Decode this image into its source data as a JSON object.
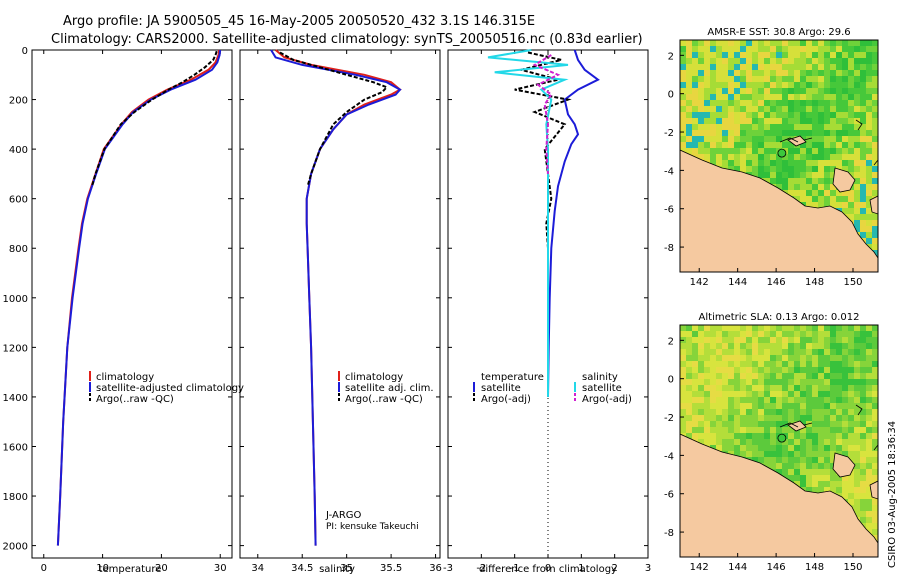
{
  "header": {
    "line1": "Argo profile: JA 5900505_45 16-May-2005 20050520_432 3.1S 146.315E",
    "line2": "Climatology: CARS2000. Satellite-adjusted climatology: synTS_20050516.nc (0.83d earlier)"
  },
  "side_text": "CSIRO 03-Aug-2005 18:36:34",
  "colors": {
    "climatology": "#e0201a",
    "satellite": "#1c1cd8",
    "argo": "#000000",
    "cyan": "#22d8e8",
    "magenta": "#d020d0",
    "land": "#f5c9a0",
    "sea_green": "#3cc83c"
  },
  "chart_data": [
    {
      "id": "temperature",
      "type": "line",
      "xlabel": "temperature",
      "ylabel": "",
      "xlim": [
        -2,
        32
      ],
      "ylim": [
        2050,
        0
      ],
      "xticks": [
        0,
        10,
        20,
        30
      ],
      "yticks": [
        0,
        200,
        400,
        600,
        800,
        1000,
        1200,
        1400,
        1600,
        1800,
        2000
      ],
      "legend": [
        "climatology",
        "satellite-adjusted climatology",
        "Argo(..raw -QC)"
      ],
      "series": [
        {
          "name": "climatology",
          "color": "red",
          "depth": [
            0,
            20,
            50,
            80,
            120,
            160,
            200,
            250,
            300,
            400,
            500,
            600,
            700,
            800,
            1000,
            1200,
            1500,
            1800,
            2000
          ],
          "values": [
            29.8,
            29.7,
            29.2,
            28.0,
            25.0,
            21.0,
            17.8,
            15.0,
            13.2,
            10.2,
            8.8,
            7.4,
            6.5,
            5.9,
            4.8,
            4.0,
            3.3,
            2.8,
            2.4
          ]
        },
        {
          "name": "satellite-adjusted climatology",
          "color": "blue",
          "depth": [
            0,
            20,
            50,
            80,
            120,
            160,
            200,
            250,
            300,
            400,
            500,
            600,
            700,
            800,
            1000,
            1200,
            1500,
            1800,
            2000
          ],
          "values": [
            30.0,
            29.9,
            29.5,
            28.6,
            25.8,
            21.6,
            18.2,
            15.2,
            13.4,
            10.4,
            8.9,
            7.5,
            6.6,
            6.0,
            4.9,
            4.0,
            3.3,
            2.8,
            2.4
          ]
        },
        {
          "name": "Argo(..raw -QC)",
          "color": "black",
          "depth": [
            5,
            20,
            40,
            70,
            100,
            130,
            160,
            200,
            250,
            300,
            400,
            500,
            550
          ],
          "values": [
            29.4,
            29.2,
            28.8,
            27.4,
            25.6,
            23.6,
            21.2,
            18.4,
            15.4,
            13.1,
            10.3,
            8.8,
            8.2
          ]
        }
      ]
    },
    {
      "id": "salinity",
      "type": "line",
      "xlabel": "salinity",
      "ylabel": "",
      "xlim": [
        33.8,
        36.05
      ],
      "ylim": [
        2050,
        0
      ],
      "xticks": [
        34,
        34.5,
        35,
        35.5,
        36
      ],
      "yticks": [
        0,
        200,
        400,
        600,
        800,
        1000,
        1200,
        1400,
        1600,
        1800,
        2000
      ],
      "legend": [
        "climatology",
        "satellite adj. clim.",
        "Argo(..raw -QC)"
      ],
      "credit": [
        "J-ARGO",
        "PI: kensuke Takeuchi"
      ],
      "series": [
        {
          "name": "climatology",
          "color": "red",
          "depth": [
            0,
            30,
            60,
            100,
            130,
            160,
            180,
            220,
            260,
            320,
            400,
            500,
            600,
            700,
            800,
            1000,
            1200,
            1500,
            1800,
            2000
          ],
          "values": [
            34.2,
            34.3,
            34.6,
            35.2,
            35.5,
            35.6,
            35.5,
            35.2,
            35.0,
            34.85,
            34.7,
            34.6,
            34.55,
            34.55,
            34.56,
            34.58,
            34.6,
            34.62,
            34.64,
            34.65
          ]
        },
        {
          "name": "satellite adj. clim.",
          "color": "blue",
          "depth": [
            0,
            30,
            60,
            100,
            130,
            160,
            180,
            220,
            260,
            320,
            400,
            500,
            600,
            700,
            800,
            1000,
            1200,
            1500,
            1800,
            2000
          ],
          "values": [
            34.15,
            34.2,
            34.5,
            35.1,
            35.45,
            35.6,
            35.55,
            35.25,
            35.0,
            34.85,
            34.7,
            34.6,
            34.55,
            34.55,
            34.56,
            34.58,
            34.6,
            34.62,
            34.64,
            34.65
          ]
        },
        {
          "name": "Argo(..raw -QC)",
          "color": "black",
          "depth": [
            10,
            40,
            70,
            100,
            130,
            150,
            170,
            200,
            250,
            300,
            400,
            500,
            550
          ],
          "values": [
            34.25,
            34.4,
            34.7,
            35.0,
            35.3,
            35.45,
            35.4,
            35.2,
            35.0,
            34.85,
            34.7,
            34.6,
            34.56
          ]
        }
      ]
    },
    {
      "id": "difference",
      "type": "line",
      "xlabel": "difference from climatology",
      "ylabel": "",
      "xlim": [
        -3,
        3
      ],
      "ylim": [
        2050,
        0
      ],
      "xticks": [
        -3,
        -2,
        -1,
        0,
        1,
        2,
        3
      ],
      "yticks": [
        0,
        200,
        400,
        600,
        800,
        1000,
        1200,
        1400,
        1600,
        1800,
        2000
      ],
      "legend_left": {
        "title": "temperature",
        "items": [
          "satellite",
          "Argo(-adj)"
        ]
      },
      "legend_right": {
        "title": "salinity",
        "items": [
          "satellite",
          "Argo(-adj)"
        ]
      },
      "series": [
        {
          "name": "temperature satellite",
          "color": "blue",
          "depth": [
            0,
            40,
            80,
            120,
            160,
            200,
            260,
            300,
            340,
            380,
            450,
            550,
            650,
            800,
            1000,
            1200,
            1400
          ],
          "values": [
            0.8,
            0.9,
            1.1,
            1.5,
            0.9,
            0.5,
            0.6,
            0.8,
            0.9,
            0.7,
            0.5,
            0.3,
            0.2,
            0.1,
            0.05,
            0.02,
            0.0
          ]
        },
        {
          "name": "temperature Argo(-adj)",
          "color": "black",
          "depth": [
            10,
            40,
            80,
            120,
            160,
            200,
            250,
            300,
            400,
            500,
            600,
            700,
            800
          ],
          "values": [
            -0.6,
            0.4,
            -0.8,
            0.3,
            -1.0,
            0.6,
            -0.4,
            0.5,
            -0.1,
            0.0,
            0.1,
            -0.05,
            0.0
          ]
        },
        {
          "name": "salinity satellite",
          "color": "cyan",
          "depth": [
            0,
            30,
            60,
            90,
            120,
            160,
            200,
            300,
            400,
            600,
            800,
            1000,
            1200,
            1400
          ],
          "values": [
            -0.5,
            -1.8,
            0.6,
            -1.6,
            0.5,
            -0.2,
            0.1,
            -0.05,
            0.0,
            0.0,
            0.0,
            0.0,
            0.0,
            0.0
          ]
        },
        {
          "name": "salinity Argo(-adj)",
          "color": "magenta",
          "depth": [
            20,
            60,
            100,
            140,
            180,
            220,
            300,
            400,
            500
          ],
          "values": [
            0.1,
            -0.4,
            0.3,
            -0.3,
            0.1,
            -0.1,
            0.0,
            -0.05,
            0.0
          ]
        }
      ]
    },
    {
      "id": "sst_map",
      "type": "heatmap",
      "title": "AMSR-E SST: 30.8 Argo: 29.6",
      "xlim": [
        141,
        151.3
      ],
      "ylim": [
        -9.3,
        2.8
      ],
      "xticks": [
        142,
        144,
        146,
        148,
        150
      ],
      "yticks": [
        2,
        0,
        -2,
        -4,
        -6,
        -8
      ],
      "argo_position": [
        146.3,
        -3.1
      ]
    },
    {
      "id": "sla_map",
      "type": "heatmap",
      "title": "Altimetric SLA: 0.13 Argo: 0.012",
      "xlim": [
        141,
        151.3
      ],
      "ylim": [
        -9.3,
        2.8
      ],
      "xticks": [
        142,
        144,
        146,
        148,
        150
      ],
      "yticks": [
        2,
        0,
        -2,
        -4,
        -6,
        -8
      ],
      "argo_position": [
        146.3,
        -3.1
      ]
    }
  ]
}
